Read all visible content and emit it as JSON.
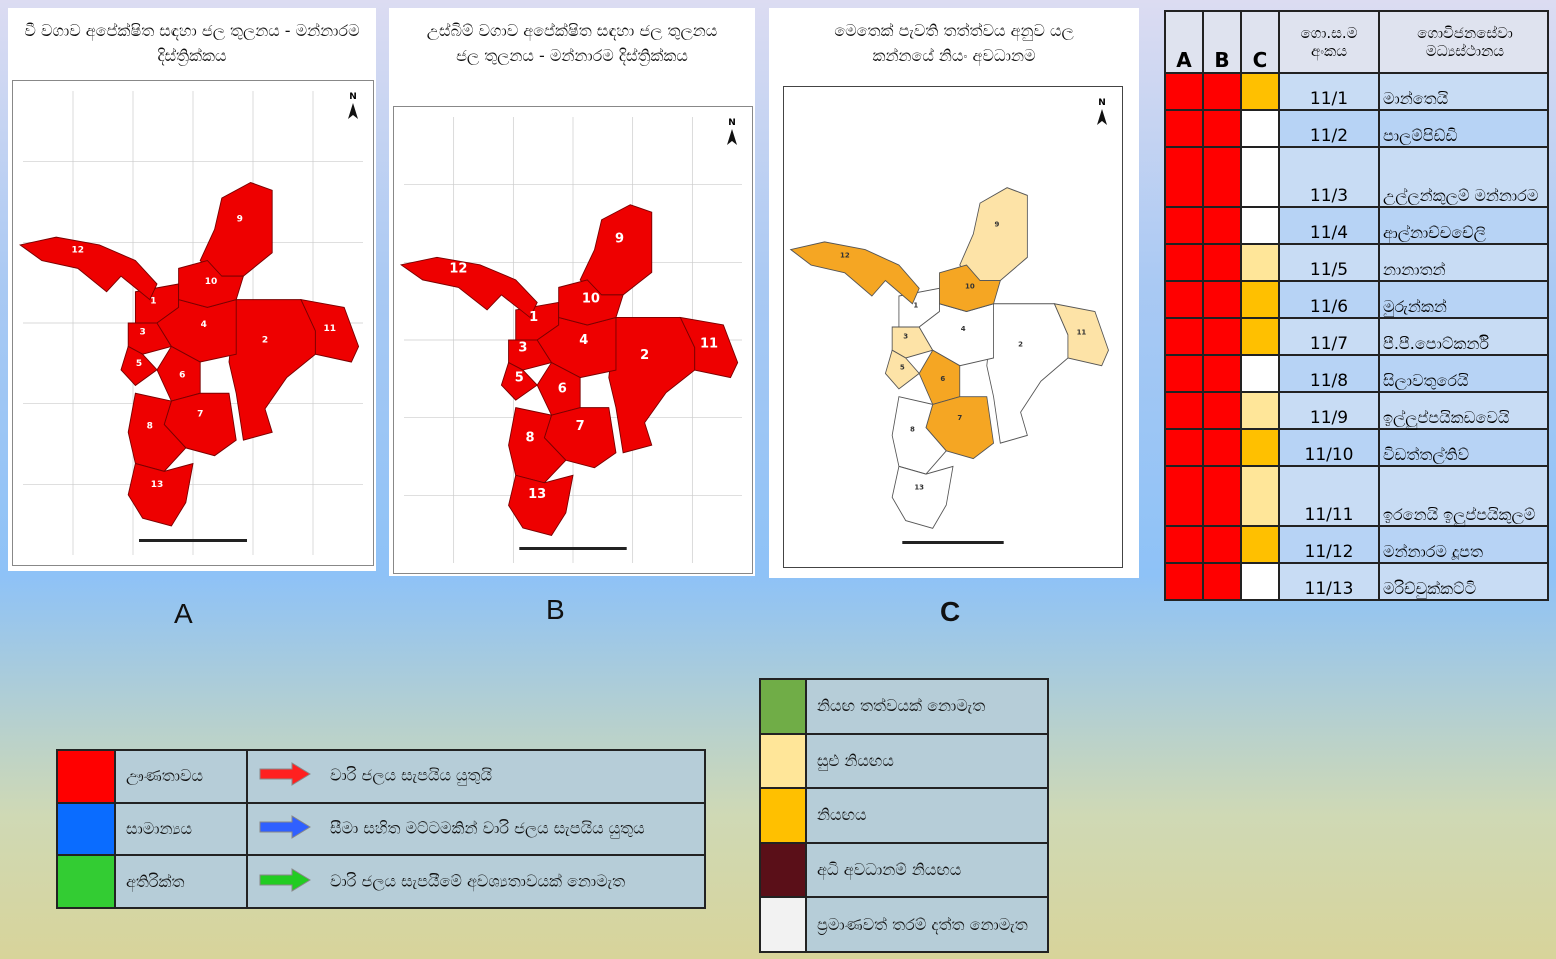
{
  "panels": [
    {
      "title": "වී වගාව අපේක්ෂිත සඳහා ජල තුලනය - මන්නාරම දිස්ත්‍රික්කය",
      "letter": "A"
    },
    {
      "title": "උස්බිම් වගාව අපේක්ෂිත සඳහා ජල තුලනය ජල තුලනය - මන්නාරම දිස්ත්‍රික්කය",
      "letter": "B"
    },
    {
      "title": "මෙතෙක් පැවති තත්ත්වය අනුව යල කන්නයේ නියං අවධානම",
      "letter": "C"
    }
  ],
  "north_label": "N",
  "region_labels": [
    "1",
    "2",
    "3",
    "4",
    "5",
    "6",
    "7",
    "8",
    "9",
    "10",
    "11",
    "12",
    "13"
  ],
  "map_c_colors": {
    "1": "#ffffff",
    "2": "#ffffff",
    "3": "#fde3a7",
    "4": "#ffffff",
    "5": "#fde3a7",
    "6": "#f5a623",
    "7": "#f5a623",
    "8": "#ffffff",
    "9": "#fde3a7",
    "10": "#f5a623",
    "11": "#fde3a7",
    "12": "#f5a623",
    "13": "#ffffff"
  },
  "table": {
    "headers": {
      "a": "A",
      "b": "B",
      "c": "C",
      "num": "ගො.ස.ම අංකය",
      "name": "ගොවිජනසේවා මධ්‍යස්ථානය"
    },
    "rows": [
      {
        "num": "11/1",
        "name": "මාන්තෙයි",
        "a": "#ff0000",
        "b": "#ff0000",
        "c": "#ffc000"
      },
      {
        "num": "11/2",
        "name": "පාලම්පිඩ්ඩි",
        "a": "#ff0000",
        "b": "#ff0000",
        "c": "#ffffff"
      },
      {
        "num": "11/3",
        "name": "උල්ලන්කුලම් මන්නාරම",
        "a": "#ff0000",
        "b": "#ff0000",
        "c": "#ffffff"
      },
      {
        "num": "11/4",
        "name": "ආල්නාච්චචේලි",
        "a": "#ff0000",
        "b": "#ff0000",
        "c": "#ffffff"
      },
      {
        "num": "11/5",
        "name": "නානාතන්",
        "a": "#ff0000",
        "b": "#ff0000",
        "c": "#ffe699"
      },
      {
        "num": "11/6",
        "name": "මුරුන්කන්",
        "a": "#ff0000",
        "b": "#ff0000",
        "c": "#ffc000"
      },
      {
        "num": "11/7",
        "name": "පී.පී.පොට්කර්නි",
        "a": "#ff0000",
        "b": "#ff0000",
        "c": "#ffc000"
      },
      {
        "num": "11/8",
        "name": "සිලාවතුරෙයි",
        "a": "#ff0000",
        "b": "#ff0000",
        "c": "#ffffff"
      },
      {
        "num": "11/9",
        "name": "ඉල්ලුප්පයිකඩවෙයි",
        "a": "#ff0000",
        "b": "#ff0000",
        "c": "#ffe699"
      },
      {
        "num": "11/10",
        "name": "විඩත්තල්තිව්",
        "a": "#ff0000",
        "b": "#ff0000",
        "c": "#ffc000"
      },
      {
        "num": "11/11",
        "name": "ඉරනෙයි ඉලුප්පයිකුලම්",
        "a": "#ff0000",
        "b": "#ff0000",
        "c": "#ffe699"
      },
      {
        "num": "11/12",
        "name": "මන්නාරම දූපත",
        "a": "#ff0000",
        "b": "#ff0000",
        "c": "#ffc000"
      },
      {
        "num": "11/13",
        "name": "මරිච්චුක්කට්ටි",
        "a": "#ff0000",
        "b": "#ff0000",
        "c": "#ffffff"
      }
    ]
  },
  "legend_balance": [
    {
      "color": "#ff0000",
      "label": "ඌණතාවය",
      "arrow": "#ff2020",
      "desc": "වාරි ජලය සැපයිය යුතුයි"
    },
    {
      "color": "#0a6cff",
      "label": "සාමාන්‍යය",
      "arrow": "#3060ff",
      "desc": "සීමා සහිත මට්ටමකින් වාරි ජලය සැපයිය යුතුය"
    },
    {
      "color": "#33cc33",
      "label": "අතිරික්ත",
      "arrow": "#22cc22",
      "desc": "වාරි ජලය සැපයීමේ අවශ්‍යතාවයක් නොමැත"
    }
  ],
  "legend_drought": [
    {
      "color": "#70ad47",
      "label": "නියඟ තත්වයක් නොමැත"
    },
    {
      "color": "#ffe699",
      "label": "සුළු නියඟය"
    },
    {
      "color": "#ffc000",
      "label": "නියඟය"
    },
    {
      "color": "#5a0f18",
      "label": "අධි අවධානම් නියඟය"
    },
    {
      "color": "#f2f2f2",
      "label": "ප්‍රමාණවත් තරම් දත්ත නොමැත"
    }
  ]
}
